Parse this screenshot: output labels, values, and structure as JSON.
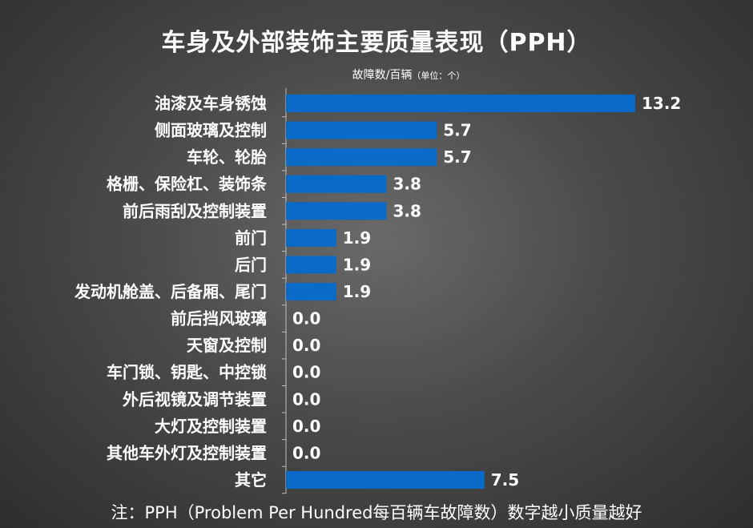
{
  "title": "车身及外部装饰主要质量表现（PPH）",
  "subtitle": "故障数/百辆",
  "subtitle_unit": "（单位：个）",
  "note": "注：PPH（Problem Per Hundred每百辆车故障数）数字越小质量越好",
  "colors": {
    "bar": "#0a6ac8",
    "axis": "#bfbfbf",
    "text": "#ffffff"
  },
  "chart_data": {
    "type": "bar",
    "orientation": "horizontal",
    "categories": [
      "油漆及车身锈蚀",
      "侧面玻璃及控制",
      "车轮、轮胎",
      "格栅、保险杠、装饰条",
      "前后雨刮及控制装置",
      "前门",
      "后门",
      "发动机舱盖、后备厢、尾门",
      "前后挡风玻璃",
      "天窗及控制",
      "车门锁、钥匙、中控锁",
      "外后视镜及调节装置",
      "大灯及控制装置",
      "其他车外灯及控制装置",
      "其它"
    ],
    "values": [
      13.2,
      5.7,
      5.7,
      3.8,
      3.8,
      1.9,
      1.9,
      1.9,
      0.0,
      0.0,
      0.0,
      0.0,
      0.0,
      0.0,
      7.5
    ],
    "value_labels": [
      "13.2",
      "5.7",
      "5.7",
      "3.8",
      "3.8",
      "1.9",
      "1.9",
      "1.9",
      "0.0",
      "0.0",
      "0.0",
      "0.0",
      "0.0",
      "0.0",
      "7.5"
    ],
    "xlim": [
      0,
      13.2
    ],
    "grid": false,
    "legend": "none"
  }
}
